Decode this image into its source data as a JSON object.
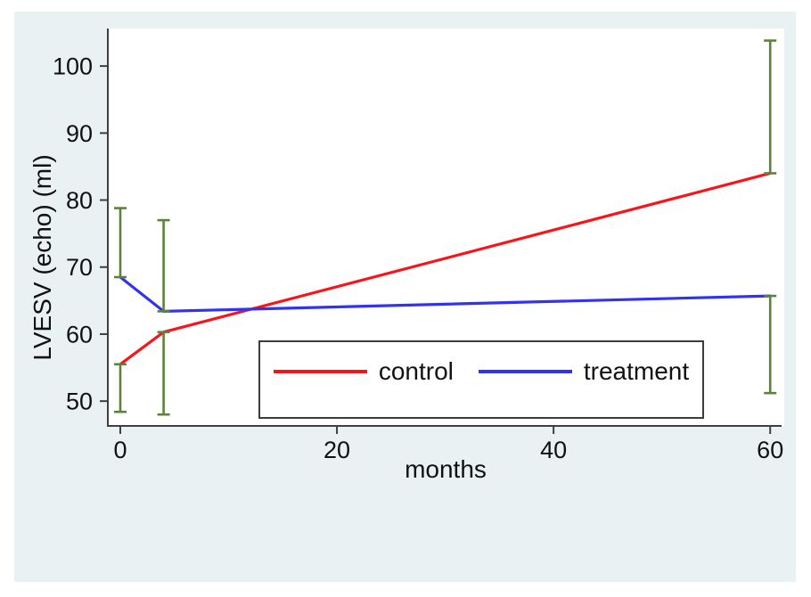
{
  "colors": {
    "figure_background": "#eaf1f3",
    "plot_background": "#ffffff",
    "axis": "#3f3f3f",
    "text": "#111111",
    "legend_border": "#3c3c3c",
    "legend_background": "#ffffff"
  },
  "chart_data": {
    "type": "line",
    "title": "",
    "xlabel": "months",
    "ylabel": "LVESV (echo) (ml)",
    "xlim": [
      -1.15,
      61.3
    ],
    "ylim": [
      46.3,
      105.6
    ],
    "x_ticks": [
      0,
      20,
      40,
      60
    ],
    "y_ticks": [
      50,
      60,
      70,
      80,
      90,
      100
    ],
    "grid": false,
    "legend_position": "inside-bottom-center",
    "series": [
      {
        "name": "control",
        "color": "#f81418",
        "x": [
          0,
          4,
          60
        ],
        "y": [
          55.5,
          60.3,
          84.0
        ]
      },
      {
        "name": "treatment",
        "color": "#3232f0",
        "x": [
          0,
          4,
          60
        ],
        "y": [
          68.5,
          63.4,
          65.7
        ]
      }
    ],
    "error_bars": {
      "color": "#5c833c",
      "cap_width": 14,
      "segments": [
        {
          "x": 0,
          "from": 68.5,
          "to": 78.8
        },
        {
          "x": 0,
          "from": 55.5,
          "to": 48.4
        },
        {
          "x": 4,
          "from": 63.4,
          "to": 77.0
        },
        {
          "x": 4,
          "from": 60.3,
          "to": 48.0
        },
        {
          "x": 60,
          "from": 84.0,
          "to": 103.8
        },
        {
          "x": 60,
          "from": 65.7,
          "to": 51.2
        }
      ]
    }
  }
}
